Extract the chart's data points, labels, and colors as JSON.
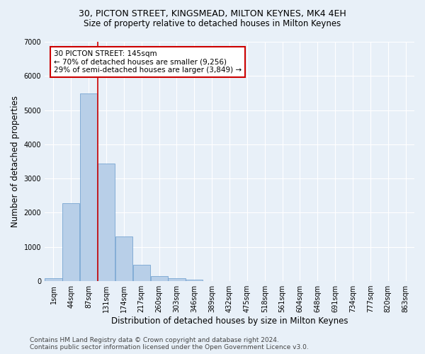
{
  "title": "30, PICTON STREET, KINGSMEAD, MILTON KEYNES, MK4 4EH",
  "subtitle": "Size of property relative to detached houses in Milton Keynes",
  "xlabel": "Distribution of detached houses by size in Milton Keynes",
  "ylabel": "Number of detached properties",
  "footer_line1": "Contains HM Land Registry data © Crown copyright and database right 2024.",
  "footer_line2": "Contains public sector information licensed under the Open Government Licence v3.0.",
  "categories": [
    "1sqm",
    "44sqm",
    "87sqm",
    "131sqm",
    "174sqm",
    "217sqm",
    "260sqm",
    "303sqm",
    "346sqm",
    "389sqm",
    "432sqm",
    "475sqm",
    "518sqm",
    "561sqm",
    "604sqm",
    "648sqm",
    "691sqm",
    "734sqm",
    "777sqm",
    "820sqm",
    "863sqm"
  ],
  "bar_heights": [
    80,
    2280,
    5480,
    3440,
    1310,
    470,
    155,
    80,
    50,
    0,
    0,
    0,
    0,
    0,
    0,
    0,
    0,
    0,
    0,
    0,
    0
  ],
  "bar_color": "#b8cfe8",
  "bar_edge_color": "#6699cc",
  "ylim": [
    0,
    7000
  ],
  "yticks": [
    0,
    1000,
    2000,
    3000,
    4000,
    5000,
    6000,
    7000
  ],
  "vline_x": 2.5,
  "annotation_text_line1": "30 PICTON STREET: 145sqm",
  "annotation_text_line2": "← 70% of detached houses are smaller (9,256)",
  "annotation_text_line3": "29% of semi-detached houses are larger (3,849) →",
  "annotation_box_color": "#ffffff",
  "annotation_box_edge": "#cc0000",
  "vline_color": "#cc0000",
  "bg_color": "#e8f0f8",
  "grid_color": "#ffffff",
  "title_fontsize": 9,
  "subtitle_fontsize": 8.5,
  "axis_label_fontsize": 8.5,
  "tick_fontsize": 7,
  "footer_fontsize": 6.5,
  "ann_fontsize": 7.5
}
